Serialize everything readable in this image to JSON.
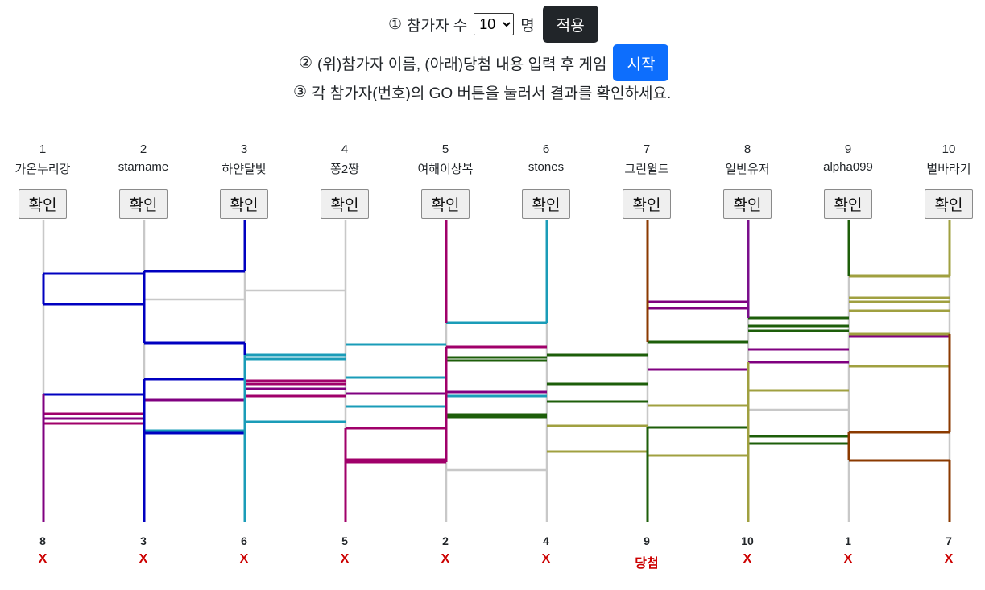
{
  "controls": {
    "step1_mark": "①",
    "step1_label": "참가자 수",
    "count_value": "10",
    "count_unit": "명",
    "apply_label": "적용",
    "step2_mark": "②",
    "step2_label": "(위)참가자 이름, (아래)당첨 내용 입력 후 게임",
    "start_label": "시작",
    "step3_mark": "③",
    "step3_label": "각 참가자(번호)의 GO 버튼을 눌러서 결과를 확인하세요."
  },
  "participants": [
    {
      "num": "1",
      "name": "가온누리강",
      "button": "확인",
      "color": "#800080"
    },
    {
      "num": "2",
      "name": "starname",
      "button": "확인",
      "color": "#0000c0"
    },
    {
      "num": "3",
      "name": "하얀달빛",
      "button": "확인",
      "color": "#0000c0"
    },
    {
      "num": "4",
      "name": "쫑2짱",
      "button": "확인",
      "color": "#c8c8c8"
    },
    {
      "num": "5",
      "name": "여해이상복",
      "button": "확인",
      "color": "#a0006a"
    },
    {
      "num": "6",
      "name": "stones",
      "button": "확인",
      "color": "#1a9cb8"
    },
    {
      "num": "7",
      "name": "그린윌드",
      "button": "확인",
      "color": "#8b3a00"
    },
    {
      "num": "8",
      "name": "일반유저",
      "button": "확인",
      "color": "#7a0f8c"
    },
    {
      "num": "9",
      "name": "alpha099",
      "button": "확인",
      "color": "#1d5e0a"
    },
    {
      "num": "10",
      "name": "별바라기",
      "button": "확인",
      "color": "#a0a040"
    }
  ],
  "results": [
    {
      "num": "8",
      "prize": "X"
    },
    {
      "num": "3",
      "prize": "X"
    },
    {
      "num": "6",
      "prize": "X"
    },
    {
      "num": "5",
      "prize": "X"
    },
    {
      "num": "2",
      "prize": "X"
    },
    {
      "num": "4",
      "prize": "X"
    },
    {
      "num": "9",
      "prize": "당첨"
    },
    {
      "num": "10",
      "prize": "X"
    },
    {
      "num": "1",
      "prize": "X"
    },
    {
      "num": "7",
      "prize": "X"
    }
  ]
}
